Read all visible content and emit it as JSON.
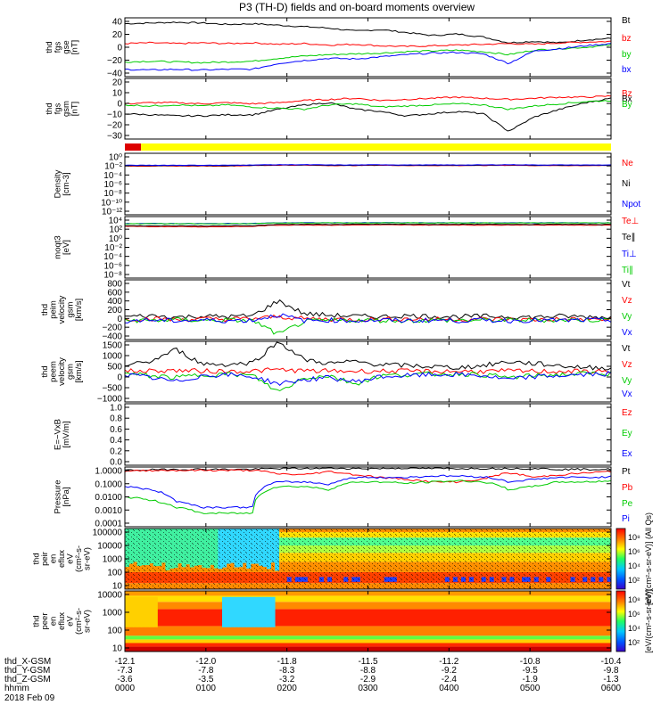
{
  "title": "P3 (TH-D) fields and on-board moments overview",
  "chart_data": {
    "type": "line",
    "title": "P3 (TH-D) fields and on-board moments overview",
    "date_label": "2018 Feb 09",
    "x_label": "hhmm",
    "x_ticks": [
      "0000",
      "0100",
      "0200",
      "0300",
      "0400",
      "0500",
      "0600"
    ],
    "orbit_rows": [
      {
        "name": "thd_X-GSM",
        "values": [
          "-12.1",
          "-12.0",
          "-11.8",
          "-11.5",
          "-11.2",
          "-10.8",
          "-10.4"
        ]
      },
      {
        "name": "thd_Y-GSM",
        "values": [
          "-7.3",
          "-7.8",
          "-8.3",
          "-8.8",
          "-9.2",
          "-9.5",
          "-9.8"
        ]
      },
      {
        "name": "thd_Z-GSM",
        "values": [
          "-3.6",
          "-3.5",
          "-3.2",
          "-2.9",
          "-2.4",
          "-1.9",
          "-1.3"
        ]
      }
    ],
    "panels": [
      {
        "id": "fgs-gse",
        "type": "line",
        "ylabel": [
          "thd",
          "fgs",
          "gse",
          "[nT]"
        ],
        "ylim": [
          -40,
          40
        ],
        "log": false,
        "ytick_labels": [
          "40",
          "20",
          "0",
          "−20",
          "−40"
        ],
        "series": [
          {
            "name": "Bt",
            "color": "#000000",
            "values": [
              32,
              33,
              34,
              33,
              31,
              32,
              30,
              28,
              26,
              22,
              24,
              20,
              16,
              18,
              14,
              6,
              8,
              6,
              10,
              12
            ]
          },
          {
            "name": "bz",
            "color": "#ff0000",
            "values": [
              5,
              6,
              5,
              6,
              5,
              6,
              4,
              5,
              3,
              4,
              2,
              1,
              2,
              3,
              4,
              5,
              4,
              6,
              7,
              8
            ]
          },
          {
            "name": "by",
            "color": "#00cc00",
            "values": [
              -20,
              -19,
              -20,
              -21,
              -20,
              -19,
              -15,
              -12,
              -10,
              -9,
              -8,
              -6,
              -5,
              -4,
              -6,
              -10,
              -4,
              -2,
              0,
              3
            ]
          },
          {
            "name": "bx",
            "color": "#0000ff",
            "values": [
              -30,
              -31,
              -30,
              -31,
              -30,
              -30,
              -22,
              -18,
              -15,
              -16,
              -13,
              -10,
              -8,
              -7,
              -9,
              -22,
              -5,
              -2,
              2,
              5
            ]
          }
        ]
      },
      {
        "id": "fgs-gsm",
        "type": "line",
        "ylabel": [
          "thd",
          "fgs",
          "gsm",
          "[nT]"
        ],
        "ylim": [
          -35,
          20
        ],
        "log": false,
        "ytick_labels": [
          "20",
          "10",
          "0",
          "−10",
          "−20",
          "−30"
        ],
        "series": [
          {
            "name": "Bz",
            "color": "#ff0000",
            "values": [
              -3,
              -2,
              -2,
              -3,
              -2,
              -3,
              -2,
              0,
              1,
              2,
              0,
              1,
              2,
              3,
              2,
              1,
              2,
              3,
              3,
              4
            ]
          },
          {
            "name": "Bx",
            "color": "#000000",
            "values": [
              -12,
              -13,
              -14,
              -14,
              -13,
              -13,
              -8,
              -4,
              -2,
              -8,
              -10,
              -14,
              -12,
              -10,
              -12,
              -28,
              -15,
              -8,
              -2,
              2
            ]
          },
          {
            "name": "By",
            "color": "#00cc00",
            "values": [
              -4,
              -5,
              -4,
              -5,
              -4,
              -6,
              -7,
              -8,
              -4,
              -3,
              -6,
              -5,
              -4,
              -3,
              -4,
              -8,
              -5,
              -3,
              -1,
              0
            ]
          }
        ]
      },
      {
        "id": "mode-bar",
        "type": "bar",
        "segments": [
          {
            "color": "#dd0000",
            "from_hours": 0.0,
            "to_hours": 0.2
          },
          {
            "color": "#ffff00",
            "from_hours": 0.2,
            "to_hours": 6.0
          }
        ]
      },
      {
        "id": "density",
        "type": "line",
        "ylabel": [
          "Density",
          "[cm-3]"
        ],
        "ylim": [
          1e-14,
          1000.0
        ],
        "log": true,
        "ytick_labels": [
          "10⁰",
          "10⁻²",
          "10⁻⁴",
          "10⁻⁶",
          "10⁻⁸",
          "10⁻¹⁰",
          "10⁻¹²"
        ],
        "series": [
          {
            "name": "Ne",
            "color": "#ff0000",
            "values": [
              0.3,
              0.3,
              0.3,
              0.3,
              0.3,
              0.4,
              0.5,
              0.5,
              0.4,
              0.4,
              0.5,
              0.4,
              0.4,
              0.4,
              0.4,
              0.5,
              0.4,
              0.4,
              0.4,
              0.4
            ]
          },
          {
            "name": "Ni",
            "color": "#000000",
            "values": [
              0.4,
              0.4,
              0.4,
              0.4,
              0.4,
              0.5,
              0.6,
              0.6,
              0.5,
              0.5,
              0.6,
              0.5,
              0.5,
              0.5,
              0.5,
              0.6,
              0.5,
              0.5,
              0.5,
              0.5
            ]
          },
          {
            "name": "Npot",
            "color": "#0000ff",
            "values": [
              0.5,
              0.5,
              0.5,
              0.5,
              0.5,
              0.6,
              0.7,
              0.7,
              0.6,
              0.6,
              0.7,
              0.6,
              0.6,
              0.6,
              0.6,
              0.7,
              0.6,
              0.6,
              0.6,
              0.6
            ]
          }
        ]
      },
      {
        "id": "temperature",
        "type": "line",
        "ylabel": [
          "moqt3",
          "[eV]"
        ],
        "ylim": [
          1e-10,
          100000.0
        ],
        "log": true,
        "ytick_labels": [
          "10⁴",
          "10²",
          "10⁰",
          "10⁻²",
          "10⁻⁴",
          "10⁻⁶",
          "10⁻⁸"
        ],
        "series": [
          {
            "name": "Te⊥",
            "color": "#ff0000",
            "values": [
              400,
              350,
              380,
              300,
              350,
              400,
              800,
              900,
              800,
              900,
              1000,
              900,
              850,
              900,
              800,
              900,
              850,
              900,
              800,
              800
            ]
          },
          {
            "name": "Te∥",
            "color": "#000000",
            "values": [
              600,
              550,
              580,
              500,
              550,
              600,
              1200,
              1300,
              1200,
              1300,
              1400,
              1300,
              1200,
              1300,
              1200,
              1300,
              1200,
              1300,
              1200,
              1200
            ]
          },
          {
            "name": "Ti⊥",
            "color": "#0000ff",
            "values": [
              2000,
              2100,
              2000,
              1900,
              2000,
              2100,
              3000,
              3200,
              3000,
              3100,
              3300,
              3100,
              3000,
              3100,
              3000,
              3100,
              3000,
              3100,
              3000,
              3000
            ]
          },
          {
            "name": "Ti∥",
            "color": "#00cc00",
            "values": [
              1800,
              1900,
              1800,
              1700,
              1800,
              1900,
              2800,
              3000,
              2800,
              2900,
              3100,
              2900,
              2800,
              2900,
              2800,
              2900,
              2800,
              2900,
              2800,
              2800
            ]
          }
        ]
      },
      {
        "id": "peim-velocity",
        "type": "line",
        "ylabel": [
          "thd",
          "peim",
          "velocity",
          "gsm",
          "[km/s]"
        ],
        "ylim": [
          -400,
          800
        ],
        "log": false,
        "ytick_labels": [
          "800",
          "600",
          "400",
          "200",
          "0",
          "−200",
          "−400"
        ],
        "series": [
          {
            "name": "Vt",
            "color": "#000000",
            "values": [
              60,
              80,
              50,
              70,
              60,
              80,
              380,
              120,
              90,
              70,
              60,
              80,
              70,
              60,
              70,
              60,
              50,
              70,
              60,
              50
            ]
          },
          {
            "name": "Vz",
            "color": "#ff0000",
            "values": [
              10,
              20,
              0,
              15,
              10,
              20,
              60,
              20,
              10,
              5,
              10,
              15,
              10,
              5,
              10,
              5,
              0,
              10,
              5,
              0
            ]
          },
          {
            "name": "Vy",
            "color": "#00cc00",
            "values": [
              -10,
              -20,
              0,
              -15,
              -10,
              -20,
              -300,
              -40,
              -20,
              -10,
              -15,
              -20,
              -10,
              -15,
              -10,
              -15,
              -5,
              -10,
              -5,
              -5
            ]
          },
          {
            "name": "Vx",
            "color": "#0000ff",
            "values": [
              -20,
              -10,
              -20,
              -10,
              -20,
              -10,
              100,
              -20,
              -10,
              -20,
              -10,
              -20,
              -10,
              -20,
              -10,
              -20,
              -10,
              -20,
              -10,
              -10
            ]
          }
        ]
      },
      {
        "id": "peem-velocity",
        "type": "line",
        "ylabel": [
          "thd",
          "peem",
          "velocity",
          "gsm",
          "[km/s]"
        ],
        "ylim": [
          -1500,
          1500
        ],
        "log": false,
        "ytick_labels": [
          "1500",
          "1000",
          "500",
          "0",
          "−500",
          "−1000"
        ],
        "series": [
          {
            "name": "Vt",
            "color": "#000000",
            "values": [
              300,
              500,
              1100,
              400,
              350,
              450,
              1500,
              600,
              400,
              500,
              350,
              300,
              250,
              200,
              300,
              500,
              400,
              300,
              200,
              200
            ]
          },
          {
            "name": "Vz",
            "color": "#ff0000",
            "values": [
              20,
              40,
              60,
              30,
              20,
              30,
              100,
              40,
              30,
              20,
              30,
              20,
              10,
              20,
              10,
              30,
              20,
              10,
              10,
              10
            ]
          },
          {
            "name": "Vy",
            "color": "#00cc00",
            "values": [
              -100,
              -200,
              -300,
              -150,
              -120,
              -200,
              -1000,
              -300,
              -200,
              -600,
              -200,
              -150,
              -120,
              -100,
              -150,
              -300,
              -200,
              -150,
              -100,
              -80
            ]
          },
          {
            "name": "Vx",
            "color": "#0000ff",
            "values": [
              -150,
              -300,
              -500,
              -200,
              -150,
              -250,
              -600,
              -400,
              -300,
              -500,
              -250,
              -200,
              -150,
              -150,
              -200,
              -400,
              -250,
              -200,
              -150,
              -100
            ]
          }
        ]
      },
      {
        "id": "efield",
        "type": "line",
        "ylabel": [
          "E=−VxB",
          "[mV/m]"
        ],
        "ylim": [
          0,
          1
        ],
        "log": false,
        "ytick_labels": [
          "1.0",
          "0.8",
          "0.6",
          "0.4",
          "0.2",
          "0.0"
        ],
        "series": [
          {
            "name": "Ez",
            "color": "#ff0000",
            "values": []
          },
          {
            "name": "Ey",
            "color": "#00cc00",
            "values": []
          },
          {
            "name": "Ex",
            "color": "#0000ff",
            "values": []
          }
        ]
      },
      {
        "id": "pressure",
        "type": "line",
        "ylabel": [
          "Pressure",
          "[nPa]"
        ],
        "ylim": [
          0.0001,
          1
        ],
        "log": true,
        "ytick_labels": [
          "1.0000",
          "0.1000",
          "0.0100",
          "0.0010",
          "0.0001"
        ],
        "series": [
          {
            "name": "Pt",
            "color": "#000000",
            "values": [
              0.6,
              0.65,
              0.7,
              0.7,
              0.7,
              0.7,
              0.8,
              0.8,
              0.85,
              0.8,
              0.8,
              0.85,
              0.8,
              0.8,
              0.8,
              0.8,
              0.8,
              0.7,
              0.7,
              0.7
            ]
          },
          {
            "name": "Pb",
            "color": "#ff0000",
            "values": [
              0.5,
              0.6,
              0.6,
              0.6,
              0.6,
              0.6,
              0.35,
              0.3,
              0.5,
              0.3,
              0.2,
              0.15,
              0.1,
              0.1,
              0.15,
              0.4,
              0.2,
              0.3,
              0.4,
              0.5
            ]
          },
          {
            "name": "Pe",
            "color": "#00cc00",
            "values": [
              0.01,
              0.006,
              0.002,
              0.0008,
              0.0008,
              0.0008,
              0.05,
              0.05,
              0.03,
              0.1,
              0.1,
              0.08,
              0.1,
              0.12,
              0.1,
              0.03,
              0.05,
              0.1,
              0.1,
              0.12
            ]
          },
          {
            "name": "Pi",
            "color": "#0000ff",
            "values": [
              0.05,
              0.03,
              0.005,
              0.002,
              0.002,
              0.002,
              0.1,
              0.1,
              0.07,
              0.2,
              0.2,
              0.2,
              0.25,
              0.25,
              0.22,
              0.1,
              0.15,
              0.2,
              0.2,
              0.22
            ]
          }
        ]
      },
      {
        "id": "peir-spectrogram",
        "type": "heatmap",
        "ylabel": [
          "thd",
          "peir",
          "en",
          "eflux",
          "eV",
          "(cm²-s-",
          "sr-eV)"
        ],
        "ylim": [
          5,
          100000
        ],
        "log": true,
        "ytick_labels": [
          "100000",
          "10000",
          "1000",
          "100",
          "10"
        ],
        "colorbar_label": "[eV/(cm²-s-sr-eV)] (All Qs)",
        "colorbar_ticks": [
          "10⁸",
          "10⁶",
          "10⁴",
          "10²"
        ]
      },
      {
        "id": "peer-spectrogram",
        "type": "heatmap",
        "ylabel": [
          "thd",
          "peer",
          "en",
          "eflux",
          "eV",
          "(cm²-s-",
          "sr-eV)"
        ],
        "ylim": [
          5,
          30000
        ],
        "log": true,
        "ytick_labels": [
          "10000",
          "1000",
          "100",
          "10"
        ],
        "colorbar_label": "[eV/(cm²-s-sr-eV)]",
        "colorbar_ticks": [
          "10⁸",
          "10⁶",
          "10⁴",
          "10²"
        ]
      }
    ]
  }
}
